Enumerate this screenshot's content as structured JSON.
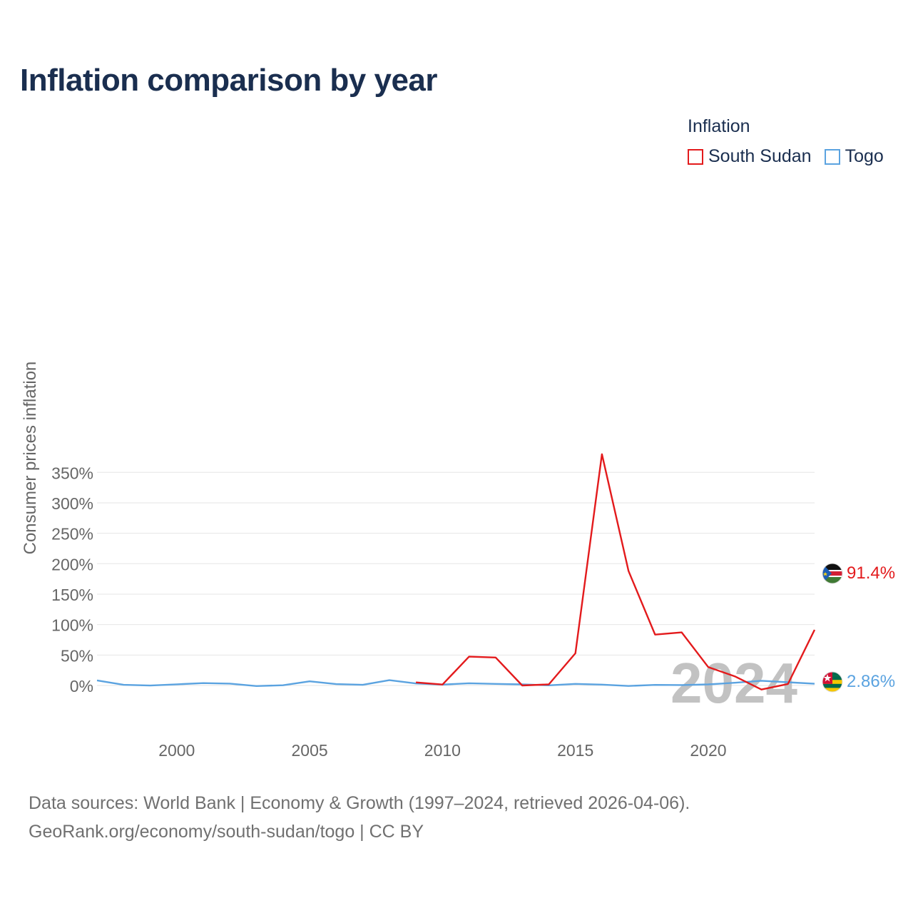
{
  "title": "Inflation comparison by year",
  "legend": {
    "title": "Inflation",
    "items": [
      {
        "name": "South Sudan",
        "color": "#e31a1c"
      },
      {
        "name": "Togo",
        "color": "#5ba3e0"
      }
    ]
  },
  "footer": {
    "line1": "Data sources: World Bank | Economy & Growth (1997–2024, retrieved 2026-04-06).",
    "line2": "GeoRank.org/economy/south-sudan/togo | CC BY"
  },
  "chart_data": {
    "type": "line",
    "title": "Inflation comparison by year",
    "xlabel": "",
    "ylabel": "Consumer prices inflation",
    "xlim": [
      1997,
      2024
    ],
    "ylim": [
      -20,
      380
    ],
    "yticks": [
      0,
      50,
      100,
      150,
      200,
      250,
      300,
      350
    ],
    "ytick_labels": [
      "0%",
      "50%",
      "100%",
      "150%",
      "200%",
      "250%",
      "300%",
      "350%"
    ],
    "xticks": [
      2000,
      2005,
      2010,
      2015,
      2020
    ],
    "xtick_labels": [
      "2000",
      "2005",
      "2010",
      "2015",
      "2020"
    ],
    "watermark": "2024",
    "series": [
      {
        "name": "South Sudan",
        "color": "#e31a1c",
        "end_label": "91.4%",
        "x": [
          2009,
          2010,
          2011,
          2012,
          2013,
          2014,
          2015,
          2016,
          2017,
          2018,
          2019,
          2020,
          2021,
          2022,
          2023,
          2024
        ],
        "values": [
          5.0,
          1.5,
          47.3,
          45.9,
          -0.04,
          1.7,
          52.8,
          379.8,
          187.9,
          83.5,
          87.2,
          30.1,
          15.0,
          -6.7,
          2.5,
          91.4
        ]
      },
      {
        "name": "Togo",
        "color": "#5ba3e0",
        "end_label": "2.86%",
        "x": [
          1997,
          1998,
          1999,
          2000,
          2001,
          2002,
          2003,
          2004,
          2005,
          2006,
          2007,
          2008,
          2009,
          2010,
          2011,
          2012,
          2013,
          2014,
          2015,
          2016,
          2017,
          2018,
          2019,
          2020,
          2021,
          2022,
          2023,
          2024
        ],
        "values": [
          8.3,
          1.0,
          -0.1,
          1.9,
          3.9,
          3.1,
          -0.9,
          0.4,
          6.8,
          2.2,
          1.0,
          8.7,
          3.3,
          1.4,
          3.6,
          2.6,
          1.8,
          0.2,
          2.6,
          1.4,
          -0.8,
          0.9,
          0.7,
          1.8,
          4.5,
          7.7,
          5.3,
          2.86
        ]
      }
    ]
  }
}
